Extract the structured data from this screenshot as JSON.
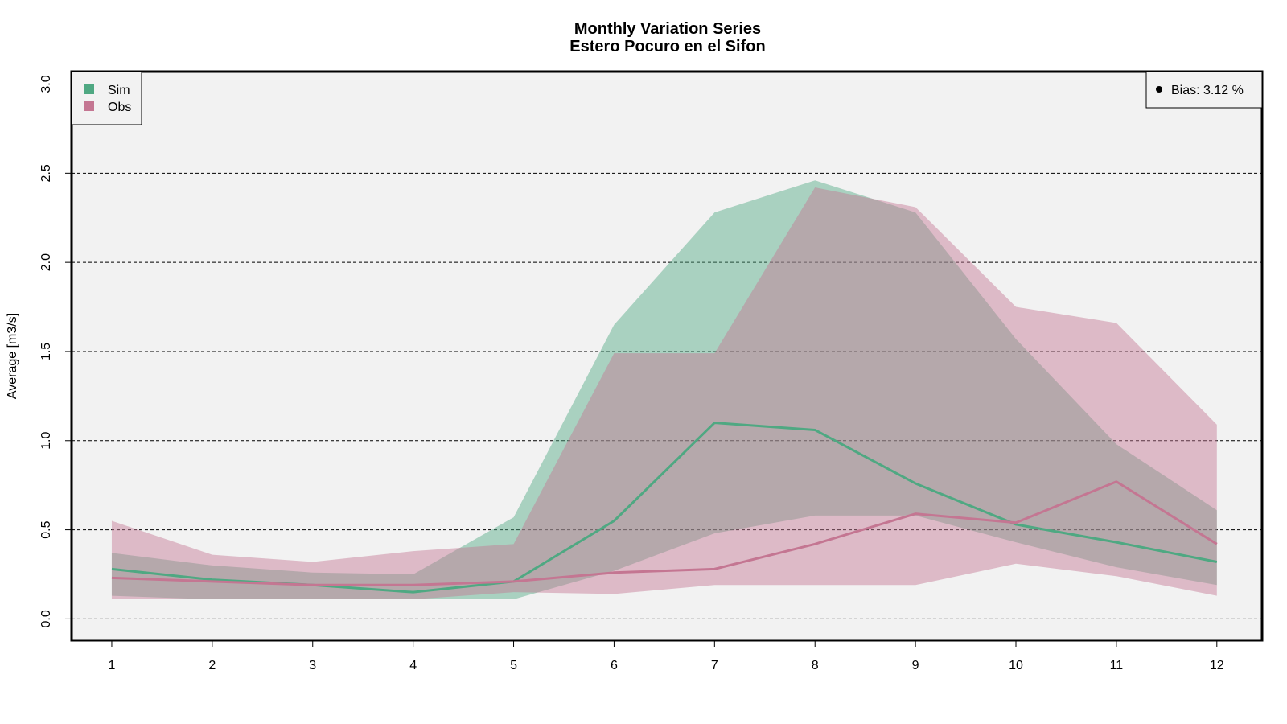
{
  "chart_data": {
    "type": "area",
    "title": "Monthly Variation Series",
    "subtitle": "Estero Pocuro en el Sifon",
    "xlabel": "",
    "ylabel": "Average [m3/s]",
    "categories": [
      "1",
      "2",
      "3",
      "4",
      "5",
      "6",
      "7",
      "8",
      "9",
      "10",
      "11",
      "12"
    ],
    "x": [
      1,
      2,
      3,
      4,
      5,
      6,
      7,
      8,
      9,
      10,
      11,
      12
    ],
    "ylim": [
      -0.12,
      3.07
    ],
    "xlim": [
      0.6,
      12.45
    ],
    "yticks": [
      0.0,
      0.5,
      1.0,
      1.5,
      2.0,
      2.5,
      3.0
    ],
    "ytick_labels": [
      "0.0",
      "0.5",
      "1.0",
      "1.5",
      "2.0",
      "2.5",
      "3.0"
    ],
    "grid": "horizontal-dashed",
    "legend_position": "top-left",
    "series": [
      {
        "name": "Sim",
        "color": "#4fa882",
        "mean": [
          0.28,
          0.22,
          0.19,
          0.15,
          0.21,
          0.55,
          1.1,
          1.06,
          0.76,
          0.53,
          0.43,
          0.32
        ],
        "upper": [
          0.37,
          0.3,
          0.26,
          0.25,
          0.57,
          1.65,
          2.28,
          2.46,
          2.28,
          1.57,
          0.98,
          0.61
        ],
        "lower": [
          0.13,
          0.11,
          0.11,
          0.11,
          0.11,
          0.27,
          0.48,
          0.58,
          0.58,
          0.43,
          0.29,
          0.19
        ]
      },
      {
        "name": "Obs",
        "color": "#c47692",
        "mean": [
          0.23,
          0.21,
          0.19,
          0.19,
          0.21,
          0.26,
          0.28,
          0.42,
          0.59,
          0.54,
          0.77,
          0.42
        ],
        "upper": [
          0.55,
          0.36,
          0.32,
          0.38,
          0.42,
          1.49,
          1.49,
          2.42,
          2.31,
          1.75,
          1.66,
          1.09
        ],
        "lower": [
          0.11,
          0.11,
          0.11,
          0.11,
          0.15,
          0.14,
          0.19,
          0.19,
          0.19,
          0.31,
          0.24,
          0.13
        ]
      }
    ],
    "annotation": {
      "text": "Bias: 3.12 %",
      "position": "top-right"
    }
  }
}
